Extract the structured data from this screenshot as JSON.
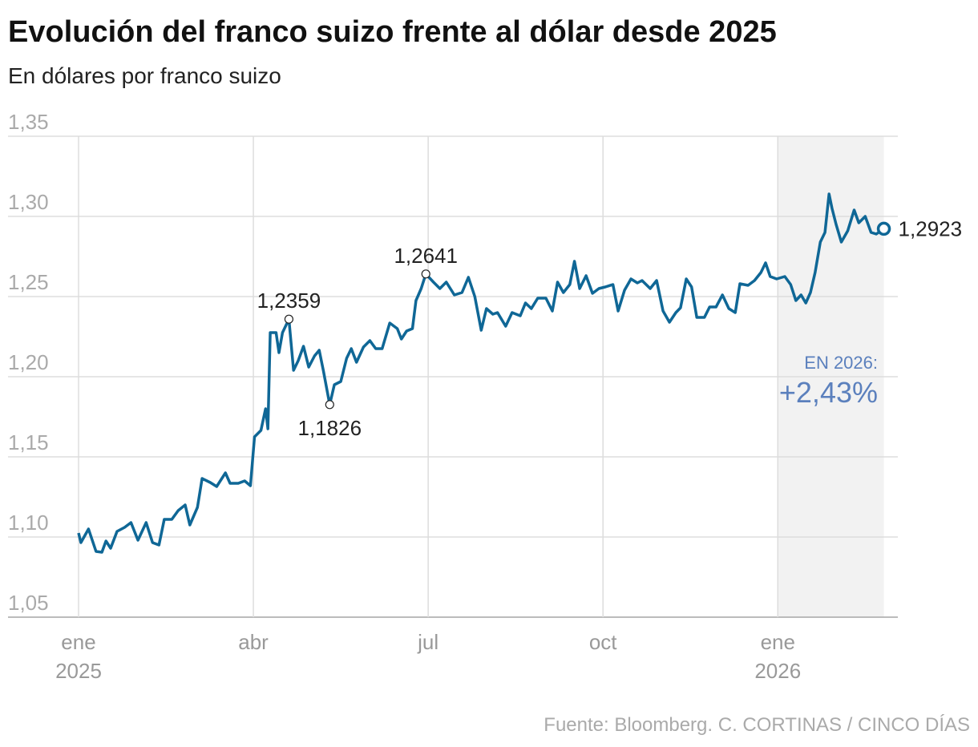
{
  "chart_data": {
    "type": "line",
    "title": "Evolución del franco suizo frente al dólar desde 2025",
    "subtitle": "En dólares por franco suizo",
    "source": "Fuente: Bloomberg. C. CORTINAS / CINCO DÍAS",
    "annotations": [
      "EN 2026:",
      "+2,43%"
    ],
    "color": "#0f6796",
    "grid": true,
    "xlim": [
      0,
      14.06
    ],
    "xticks": [
      {
        "value": 0,
        "label": "ene 2025"
      },
      {
        "value": 3,
        "label": "abr"
      },
      {
        "value": 6,
        "label": "jul"
      },
      {
        "value": 9,
        "label": "oct"
      },
      {
        "value": 12,
        "label": "ene 2026"
      }
    ],
    "ylim": [
      1.05,
      1.35
    ],
    "yticks": [
      {
        "value": 1.05,
        "label": "1,05"
      },
      {
        "value": 1.1,
        "label": "1,10"
      },
      {
        "value": 1.15,
        "label": "1,15"
      },
      {
        "value": 1.2,
        "label": "1,20"
      },
      {
        "value": 1.25,
        "label": "1,25"
      },
      {
        "value": 1.3,
        "label": "1,30"
      },
      {
        "value": 1.35,
        "label": "1,35"
      }
    ],
    "x": [
      0,
      0.04,
      0.17,
      0.3,
      0.4,
      0.47,
      0.55,
      0.66,
      0.79,
      0.9,
      1.02,
      1.16,
      1.27,
      1.38,
      1.47,
      1.6,
      1.71,
      1.83,
      1.91,
      2.04,
      2.12,
      2.26,
      2.37,
      2.52,
      2.6,
      2.74,
      2.85,
      2.95,
      3.02,
      3.13,
      3.21,
      3.25,
      3.29,
      3.39,
      3.44,
      3.5,
      3.61,
      3.69,
      3.77,
      3.86,
      3.95,
      4.05,
      4.13,
      4.2,
      4.31,
      4.39,
      4.5,
      4.6,
      4.68,
      4.77,
      4.89,
      5.0,
      5.1,
      5.21,
      5.34,
      5.47,
      5.54,
      5.63,
      5.73,
      5.79,
      5.88,
      5.96,
      6.09,
      6.2,
      6.31,
      6.45,
      6.58,
      6.69,
      6.8,
      6.91,
      7.0,
      7.11,
      7.19,
      7.33,
      7.44,
      7.58,
      7.67,
      7.77,
      7.88,
      8.02,
      8.13,
      8.22,
      8.32,
      8.43,
      8.51,
      8.6,
      8.71,
      8.82,
      8.93,
      9.04,
      9.17,
      9.26,
      9.37,
      9.48,
      9.59,
      9.67,
      9.81,
      9.92,
      10.03,
      10.14,
      10.25,
      10.33,
      10.43,
      10.52,
      10.61,
      10.74,
      10.83,
      10.94,
      11.05,
      11.16,
      11.27,
      11.35,
      11.49,
      11.6,
      11.71,
      11.79,
      11.87,
      11.98,
      12.12,
      12.22,
      12.31,
      12.4,
      12.48,
      12.56,
      12.64,
      12.73,
      12.81,
      12.88,
      12.93,
      13.0,
      13.09,
      13.2,
      13.31,
      13.39,
      13.5,
      13.6,
      13.69,
      13.82
    ],
    "values": [
      1.1025,
      1.0965,
      1.105,
      1.091,
      1.0905,
      1.0975,
      1.093,
      1.1035,
      1.106,
      1.109,
      1.098,
      1.109,
      1.0965,
      1.095,
      1.111,
      1.111,
      1.1165,
      1.12,
      1.1075,
      1.1185,
      1.1365,
      1.134,
      1.1315,
      1.14,
      1.1335,
      1.1335,
      1.135,
      1.132,
      1.1625,
      1.1665,
      1.18,
      1.1675,
      1.2275,
      1.2275,
      1.215,
      1.2275,
      1.2359,
      1.204,
      1.21,
      1.219,
      1.206,
      1.213,
      1.2165,
      1.204,
      1.1826,
      1.195,
      1.197,
      1.2115,
      1.2175,
      1.209,
      1.2185,
      1.2225,
      1.2175,
      1.2175,
      1.2335,
      1.23,
      1.2235,
      1.2285,
      1.23,
      1.2475,
      1.255,
      1.2641,
      1.259,
      1.255,
      1.259,
      1.251,
      1.2525,
      1.262,
      1.25,
      1.229,
      1.2425,
      1.239,
      1.24,
      1.2315,
      1.24,
      1.238,
      1.246,
      1.2425,
      1.249,
      1.249,
      1.241,
      1.259,
      1.2525,
      1.2575,
      1.272,
      1.255,
      1.263,
      1.252,
      1.255,
      1.256,
      1.2575,
      1.241,
      1.254,
      1.261,
      1.2585,
      1.26,
      1.255,
      1.26,
      1.241,
      1.234,
      1.24,
      1.243,
      1.261,
      1.256,
      1.237,
      1.237,
      1.2435,
      1.2435,
      1.251,
      1.2425,
      1.24,
      1.258,
      1.257,
      1.26,
      1.265,
      1.271,
      1.2625,
      1.261,
      1.2625,
      1.2575,
      1.2475,
      1.251,
      1.246,
      1.2525,
      1.265,
      1.284,
      1.29,
      1.314,
      1.305,
      1.295,
      1.284,
      1.291,
      1.304,
      1.296,
      1.3,
      1.29,
      1.289,
      1.2923
    ],
    "value_labels": [
      null,
      null,
      null,
      null,
      null,
      null,
      null,
      null,
      null,
      null,
      null,
      null,
      null,
      null,
      null,
      null,
      null,
      null,
      null,
      null,
      null,
      null,
      null,
      null,
      null,
      null,
      null,
      null,
      null,
      null,
      null,
      null,
      null,
      null,
      null,
      null,
      "1,2359",
      null,
      null,
      null,
      null,
      null,
      null,
      null,
      "1,1826",
      null,
      null,
      null,
      null,
      null,
      null,
      null,
      null,
      null,
      null,
      null,
      null,
      null,
      null,
      null,
      null,
      "1,2641",
      null,
      null,
      null,
      null,
      null,
      null,
      null,
      null,
      null,
      null,
      null,
      null,
      null,
      null,
      null,
      null,
      null,
      null,
      null,
      null,
      null,
      null,
      null,
      null,
      null,
      null,
      null,
      null,
      null,
      null,
      null,
      null,
      null,
      null,
      null,
      null,
      null,
      null,
      null,
      null,
      null,
      null,
      null,
      null,
      null,
      null,
      null,
      null,
      null,
      null,
      null,
      null,
      null,
      null,
      null,
      null,
      null,
      null,
      null,
      null,
      null,
      null,
      null,
      null,
      null,
      null,
      null,
      null,
      null,
      null,
      null,
      null,
      null,
      null,
      null,
      "1,2923"
    ]
  }
}
